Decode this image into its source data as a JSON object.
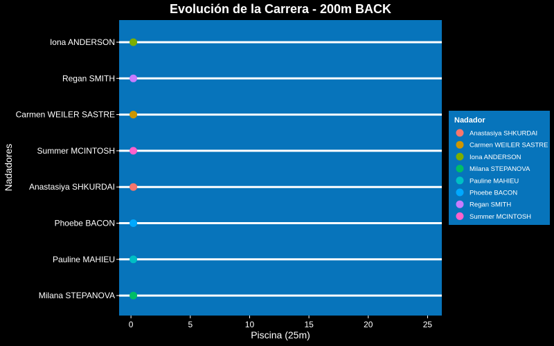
{
  "chart_data": {
    "type": "scatter",
    "title": "Evolución de la Carrera - 200m BACK",
    "xlabel": "Piscina (25m)",
    "ylabel": "Nadadores",
    "xlim": [
      -1,
      26.2
    ],
    "xticks": [
      0,
      5,
      10,
      15,
      20,
      25
    ],
    "grid": "horizontal lanes",
    "background": "#0774bb",
    "page_background": "#000000",
    "lane_color": "#ffffff",
    "categories": [
      "Iona ANDERSON",
      "Regan SMITH",
      "Carmen WEILER SASTRE",
      "Summer MCINTOSH",
      "Anastasiya SHKURDAI",
      "Phoebe BACON",
      "Pauline MAHIEU",
      "Milana STEPANOVA"
    ],
    "series": [
      {
        "name": "Anastasiya SHKURDAI",
        "x": 0.2,
        "y": "Anastasiya SHKURDAI",
        "color": "#f8766d"
      },
      {
        "name": "Carmen WEILER SASTRE",
        "x": 0.2,
        "y": "Carmen WEILER SASTRE",
        "color": "#cd9600"
      },
      {
        "name": "Iona ANDERSON",
        "x": 0.2,
        "y": "Iona ANDERSON",
        "color": "#7cae00"
      },
      {
        "name": "Milana STEPANOVA",
        "x": 0.2,
        "y": "Milana STEPANOVA",
        "color": "#00be67"
      },
      {
        "name": "Pauline MAHIEU",
        "x": 0.2,
        "y": "Pauline MAHIEU",
        "color": "#00bfc4"
      },
      {
        "name": "Phoebe BACON",
        "x": 0.2,
        "y": "Phoebe BACON",
        "color": "#00a9ff"
      },
      {
        "name": "Regan SMITH",
        "x": 0.2,
        "y": "Regan SMITH",
        "color": "#c77cff"
      },
      {
        "name": "Summer MCINTOSH",
        "x": 0.2,
        "y": "Summer MCINTOSH",
        "color": "#ff61cc"
      }
    ],
    "legend": {
      "title": "Nadador",
      "position": "right",
      "background": "#0774bb"
    }
  }
}
